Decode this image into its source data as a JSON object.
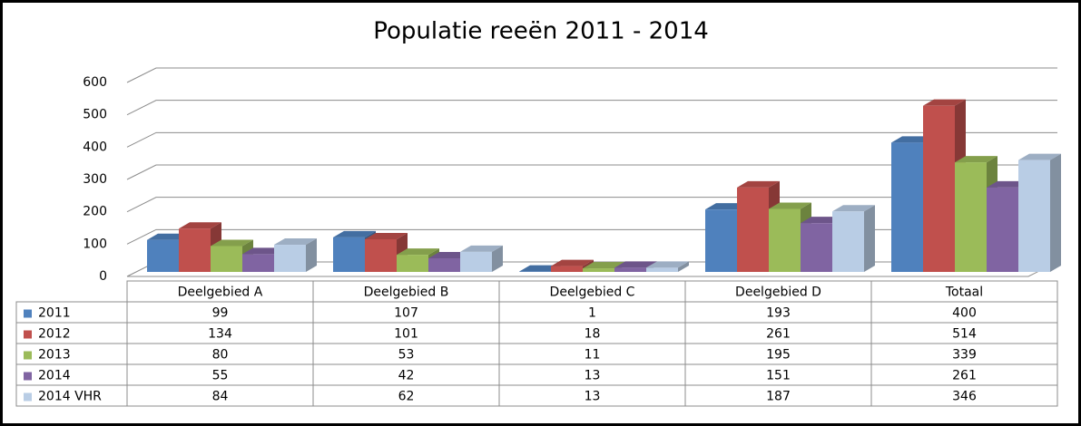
{
  "chart_data": {
    "type": "bar3d",
    "title": "Populatie reeën 2011 - 2014",
    "categories": [
      "Deelgebied A",
      "Deelgebied B",
      "Deelgebied C",
      "Deelgebied D",
      "Totaal"
    ],
    "series": [
      {
        "name": "2011",
        "color": "#4f81bd",
        "values": [
          99,
          107,
          1,
          193,
          400
        ]
      },
      {
        "name": "2012",
        "color": "#c0504d",
        "values": [
          134,
          101,
          18,
          261,
          514
        ]
      },
      {
        "name": "2013",
        "color": "#9bbb59",
        "values": [
          80,
          53,
          11,
          195,
          339
        ]
      },
      {
        "name": "2014",
        "color": "#8064a2",
        "values": [
          55,
          42,
          13,
          151,
          261
        ]
      },
      {
        "name": "2014 VHR",
        "color": "#b9cde5",
        "values": [
          84,
          62,
          13,
          187,
          346
        ]
      }
    ],
    "ylim": [
      0,
      600
    ],
    "yticks": [
      0,
      100,
      200,
      300,
      400,
      500,
      600
    ],
    "grid": true,
    "data_table": true
  }
}
